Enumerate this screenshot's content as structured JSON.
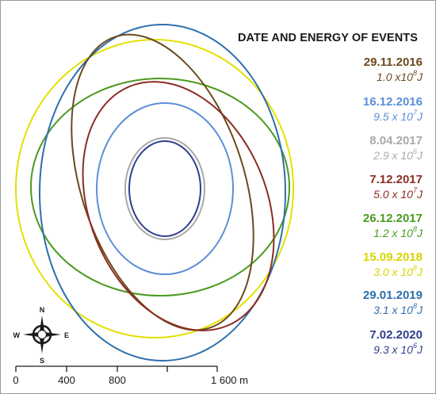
{
  "legend": {
    "title": "DATE AND ENERGY OF EVENTS",
    "events": [
      {
        "date": "29.11.2016",
        "energy_base": "1.0 x10",
        "energy_exp": "8",
        "unit": "J",
        "color": "#6b4a1e"
      },
      {
        "date": "16.12.2016",
        "energy_base": "9.5 x 10",
        "energy_exp": "7",
        "unit": "J",
        "color": "#5b8fd6"
      },
      {
        "date": "8.04.2017",
        "energy_base": "2.9 x 10",
        "energy_exp": "6",
        "unit": "J",
        "color": "#a9a9a9"
      },
      {
        "date": "7.12.2017",
        "energy_base": "5.0 x 10",
        "energy_exp": "7",
        "unit": "J",
        "color": "#8b2d22"
      },
      {
        "date": "26.12.2017",
        "energy_base": "1.2 x 10",
        "energy_exp": "8",
        "unit": "J",
        "color": "#4a9a1e"
      },
      {
        "date": "15.09.2018",
        "energy_base": "3.0 x 10",
        "energy_exp": "8",
        "unit": "J",
        "color": "#e3e000"
      },
      {
        "date": "29.01.2019",
        "energy_base": "3.1 x 10",
        "energy_exp": "8",
        "unit": "J",
        "color": "#2e6fad"
      },
      {
        "date": "7.02.2020",
        "energy_base": "9.3 x 10",
        "energy_exp": "6",
        "unit": "J",
        "color": "#2e3f8f"
      }
    ]
  },
  "scale_bar": {
    "labels": [
      "0",
      "400",
      "800",
      "1 600 m"
    ]
  },
  "compass": {
    "north": "N",
    "south": "S",
    "east": "E",
    "west": "W"
  }
}
